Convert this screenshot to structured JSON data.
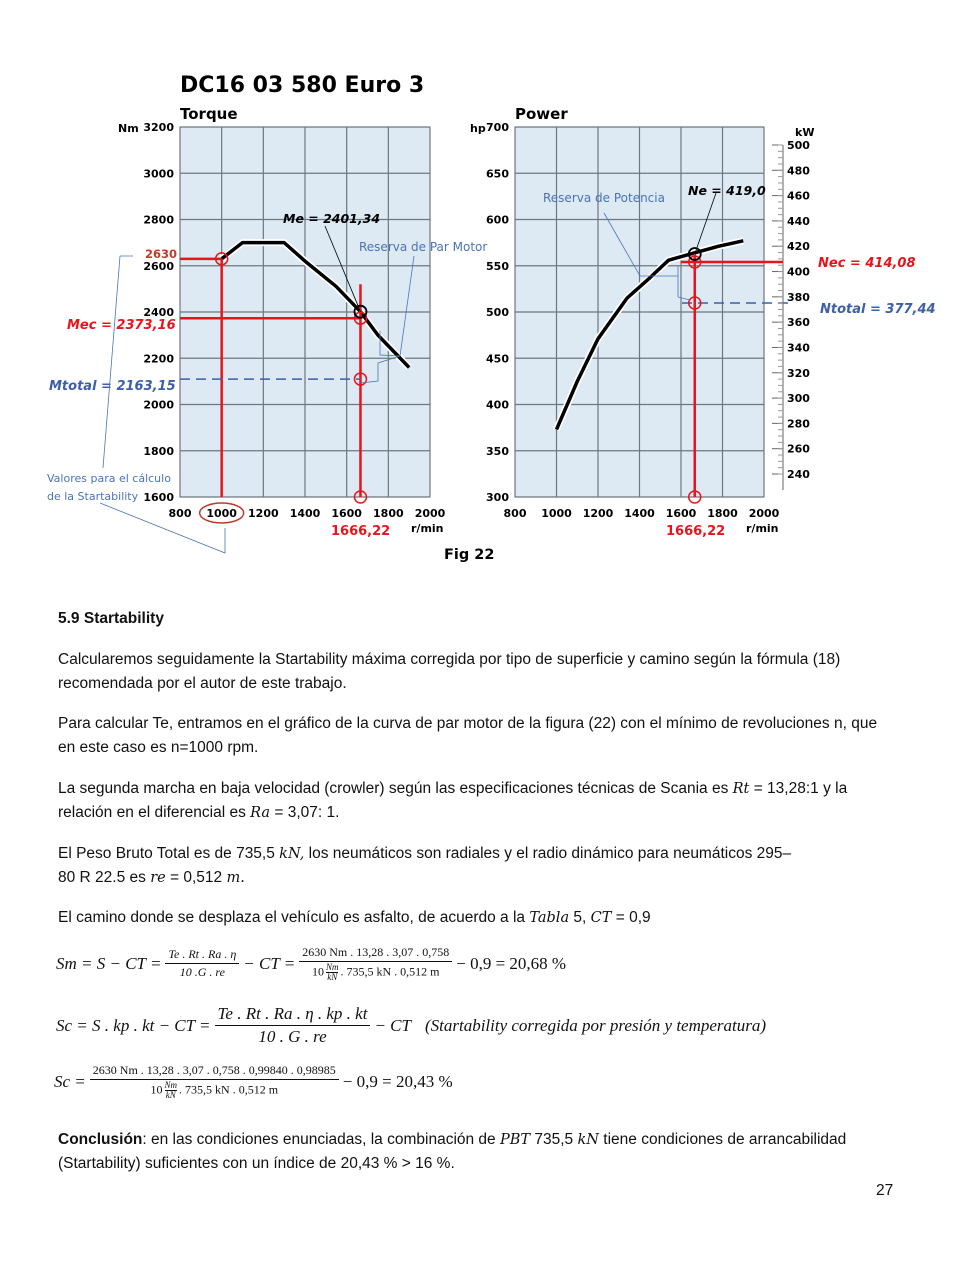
{
  "chart_data": {
    "title": "DC16 03 580 Euro 3",
    "figure_caption": "Fig 22",
    "torque": {
      "type": "line",
      "title": "Torque",
      "ylabel": "Nm",
      "xlabel": "r/min",
      "xlim": [
        800,
        2000
      ],
      "ylim": [
        1600,
        3200
      ],
      "xticks": [
        "800",
        "1000",
        "1200",
        "1400",
        "1600",
        "1800",
        "2000"
      ],
      "yticks": [
        "3200",
        "3000",
        "2800",
        "2600",
        "2400",
        "2200",
        "2000",
        "1800",
        "1600"
      ],
      "x": [
        1000,
        1100,
        1300,
        1400,
        1550,
        1666.22,
        1750,
        1900
      ],
      "y": [
        2630,
        2700,
        2700,
        2620,
        2510,
        2401.34,
        2300,
        2160
      ],
      "annotations": {
        "tick_2630": "2630",
        "me": "Me = 2401,34",
        "mec": "Mec = 2373,16",
        "mtotal": "Mtotal = 2163,15",
        "reserva": "Reserva de Par Motor",
        "valores_1": "Valores para el cálculo",
        "valores_2": "de la Startability",
        "rpm": "1666,22"
      },
      "values": {
        "n_min": 1000,
        "te": 2630,
        "n": 1666.22,
        "me": 2401.34,
        "mec": 2373.16,
        "mtotal": 2163.15
      }
    },
    "power": {
      "type": "line",
      "title": "Power",
      "ylabel": "hp",
      "y2label": "kW",
      "xlabel": "r/min",
      "xlim": [
        800,
        2000
      ],
      "ylim": [
        300,
        700
      ],
      "y2lim": [
        230,
        500
      ],
      "xticks": [
        "800",
        "1000",
        "1200",
        "1400",
        "1600",
        "1800",
        "2000"
      ],
      "yticks": [
        "700",
        "650",
        "600",
        "550",
        "500",
        "450",
        "400",
        "350",
        "300"
      ],
      "y2ticks": [
        "500",
        "480",
        "460",
        "440",
        "420",
        "400",
        "380",
        "360",
        "340",
        "320",
        "300",
        "280",
        "260",
        "240"
      ],
      "x": [
        1000,
        1100,
        1200,
        1340,
        1450,
        1540,
        1666.22,
        1780,
        1900
      ],
      "y": [
        373,
        425,
        471,
        515,
        537,
        556,
        564,
        571,
        577
      ],
      "annotations": {
        "ne": "Ne = 419,0",
        "nec": "Nec = 414,08",
        "ntotal": "Ntotal = 377,44",
        "reserva": "Reserva de Potencia",
        "rpm": "1666,22"
      },
      "values": {
        "n": 1666.22,
        "ne_kw": 419.0,
        "nec_kw": 414.08,
        "ntotal_kw": 377.44
      }
    }
  },
  "colors": {
    "red": "#e8141c",
    "blue": "#3d5fa8",
    "grid_bg": "#dde9f3",
    "label_blue": "#4a74b8"
  },
  "section": {
    "heading": "5.9 Startability",
    "p1": "Calcularemos seguidamente la Startability máxima corregida por tipo de superficie y camino según la fórmula (18) recomendada por el autor de este trabajo.",
    "p2": "Para calcular Te, entramos en el gráfico de la curva de par motor de la figura (22) con el mínimo de revoluciones n, que en este caso es n=1000 rpm.",
    "p3a": "La segunda marcha en baja velocidad (crowler) según las especificaciones técnicas de Scania es ",
    "p3m1": "Rt",
    "p3b": " = 13,28:1 y la relación en el diferencial es ",
    "p3m2": "Ra",
    "p3c": " = 3,07: 1.",
    "p4a": "El Peso Bruto Total es de 735,5 ",
    "p4m1": "kN,",
    "p4b": " los neumáticos son radiales y el radio dinámico para neumáticos 295– 80 R 22.5 es ",
    "p4m2": "re",
    "p4c": " = 0,512 ",
    "p4m3": "m.",
    "p5a": "El camino donde se desplaza el vehículo es asfalto, de acuerdo a la ",
    "p5m1": "Tabla",
    "p5b": " 5, ",
    "p5m2": "CT",
    "p5c": " = 0,9",
    "conclusion_label": "Conclusión",
    "conclusion_a": ": en las condiciones enunciadas, la combinación de ",
    "conclusion_m1": "PBT",
    "conclusion_b": " 735,5 ",
    "conclusion_m2": "kN",
    "conclusion_c": " tiene condiciones de arrancabilidad (Startability) suficientes con un índice de 20,43 % > 16 %."
  },
  "equations": {
    "sm": {
      "lhs": "Sm = S − CT =",
      "num1": "Te . Rt . Ra . η",
      "den1": "10 .G . re",
      "mid": "− CT =",
      "num2": "2630 Nm . 13,28 . 3,07 . 0,758",
      "den2a": "10",
      "den2u_n": "Nm",
      "den2u_d": "kN",
      "den2b": ". 735,5 kN . 0,512 m",
      "rhs": "− 0,9 = 20,68 %"
    },
    "sc": {
      "lhs": "Sc = S . kp . kt − CT =",
      "num": "Te . Rt . Ra . η . kp . kt",
      "den": "10 . G . re",
      "rhs": "− CT",
      "note": "(Startability corregida por presión y temperatura)"
    },
    "sc2": {
      "lhs": "Sc =",
      "num": "2630 Nm . 13,28 . 3,07 . 0,758 . 0,99840 . 0,98985",
      "den_a": "10",
      "den_u_n": "Nm",
      "den_u_d": "kN",
      "den_b": ". 735,5 kN . 0,512 m",
      "rhs": "− 0,9 = 20,43 %"
    }
  },
  "page_number": "27"
}
